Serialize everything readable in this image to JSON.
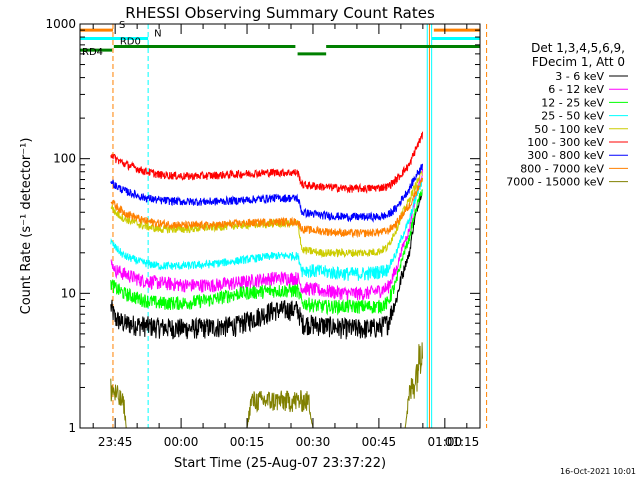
{
  "chart_data": {
    "type": "line",
    "title": "RHESSI Observing Summary Count Rates",
    "xlabel": "Start Time (25-Aug-07 23:37:22)",
    "ylabel": "Count Rate (s⁻¹ detector⁻¹)",
    "yscale": "log",
    "ylim": [
      1,
      1000
    ],
    "xlim_minutes": [
      -8,
      83
    ],
    "y_ticks": [
      {
        "v": 1,
        "label": "1"
      },
      {
        "v": 10,
        "label": "10"
      },
      {
        "v": 100,
        "label": "100"
      },
      {
        "v": 1000,
        "label": "1000"
      }
    ],
    "x_ticks": [
      {
        "t": 0,
        "label": "23:45"
      },
      {
        "t": 15,
        "label": "00:00"
      },
      {
        "t": 30,
        "label": "00:15"
      },
      {
        "t": 45,
        "label": "00:30"
      },
      {
        "t": 60,
        "label": "00:45"
      },
      {
        "t": 75,
        "label": "01:00"
      },
      {
        "t": 90,
        "label": "01:15"
      }
    ],
    "legend_header": [
      "Det 1,3,4,5,6,9,",
      "FDecim 1, Att 0"
    ],
    "series": [
      {
        "name": "3 - 6 keV",
        "color": "#000000",
        "x": [
          -1,
          0,
          2,
          6,
          10,
          16,
          22,
          28,
          36,
          41.5,
          42.5,
          47,
          53,
          57,
          60,
          62,
          64,
          67,
          70
        ],
        "y": [
          8,
          6.5,
          6,
          5.8,
          5.6,
          5.5,
          5.6,
          5.8,
          7.5,
          7.6,
          6,
          5.8,
          5.5,
          5.5,
          5.6,
          6,
          9,
          20,
          60
        ]
      },
      {
        "name": "6 - 12 keV",
        "color": "#ff00ff",
        "x": [
          -1,
          0,
          2,
          6,
          10,
          16,
          22,
          28,
          36,
          41.5,
          42.5,
          47,
          53,
          57,
          60,
          62,
          64,
          67,
          70
        ],
        "y": [
          17,
          15,
          14,
          12.5,
          12,
          11.5,
          11.5,
          12,
          13,
          13,
          11,
          10.5,
          10,
          10,
          10.5,
          11,
          15,
          30,
          80
        ]
      },
      {
        "name": "12 - 25 keV",
        "color": "#00ff00",
        "x": [
          -1,
          0,
          2,
          6,
          10,
          16,
          22,
          28,
          36,
          41.5,
          42.5,
          47,
          53,
          57,
          60,
          62,
          64,
          67,
          70
        ],
        "y": [
          12,
          11,
          10,
          9,
          8.5,
          8.5,
          9,
          10,
          10.5,
          10.5,
          8.5,
          8,
          8,
          8,
          8,
          8.5,
          12,
          26,
          60
        ]
      },
      {
        "name": "25 - 50 keV",
        "color": "#00ffff",
        "x": [
          -1,
          0,
          2,
          6,
          10,
          16,
          22,
          28,
          36,
          41.5,
          42.5,
          47,
          53,
          57,
          60,
          62,
          64,
          67,
          70
        ],
        "y": [
          24,
          22,
          19,
          17,
          16,
          16,
          16.5,
          17.5,
          19,
          19,
          15,
          14.5,
          14,
          14,
          14.5,
          15,
          20,
          35,
          70
        ]
      },
      {
        "name": "50 - 100 keV",
        "color": "#cccc00",
        "x": [
          -1,
          0,
          2,
          6,
          10,
          16,
          22,
          28,
          36,
          41.5,
          42.5,
          47,
          53,
          57,
          60,
          62,
          64,
          67,
          70
        ],
        "y": [
          45,
          40,
          36,
          32,
          30,
          30,
          31,
          32,
          33,
          33,
          21,
          20,
          20,
          20,
          20.5,
          22,
          30,
          50,
          80
        ]
      },
      {
        "name": "100 - 300 keV",
        "color": "#ff0000",
        "x": [
          -1,
          0,
          2,
          6,
          10,
          16,
          22,
          28,
          36,
          41.5,
          42.5,
          47,
          53,
          57,
          60,
          62,
          64,
          67,
          70
        ],
        "y": [
          110,
          100,
          92,
          82,
          76,
          74,
          75,
          77,
          79,
          79,
          64,
          62,
          60,
          60,
          61,
          62,
          70,
          90,
          150
        ]
      },
      {
        "name": "300 - 800 keV",
        "color": "#0000ff",
        "x": [
          -1,
          0,
          2,
          6,
          10,
          16,
          22,
          28,
          36,
          41.5,
          42.5,
          47,
          53,
          57,
          60,
          62,
          64,
          67,
          70
        ],
        "y": [
          70,
          63,
          58,
          52,
          49,
          48,
          48,
          49,
          51,
          51,
          40,
          38,
          37,
          37,
          37,
          38,
          43,
          60,
          90
        ]
      },
      {
        "name": "800 - 7000 keV",
        "color": "#ff8000",
        "x": [
          -1,
          0,
          2,
          6,
          10,
          16,
          22,
          28,
          36,
          41.5,
          42.5,
          47,
          53,
          57,
          60,
          62,
          64,
          67,
          70
        ],
        "y": [
          50,
          45,
          40,
          35,
          33,
          32,
          32,
          33,
          34,
          34,
          30,
          29,
          28,
          28,
          28.5,
          29,
          33,
          45,
          70
        ]
      },
      {
        "name": "7000 - 15000 keV",
        "color": "#808000",
        "x": [
          -1,
          0,
          2,
          2.5,
          30,
          31,
          35,
          40,
          44,
          45,
          66,
          67,
          68,
          69,
          70
        ],
        "y": [
          2,
          1.8,
          1.5,
          1,
          1,
          1.6,
          1.6,
          1.6,
          1.6,
          1,
          1,
          1.8,
          2.2,
          3,
          5
        ]
      }
    ],
    "vertical_lines": [
      {
        "t": -0.5,
        "color": "#ff8000",
        "dash": true
      },
      {
        "t": 7.5,
        "color": "#00ffff",
        "dash": true
      },
      {
        "t": 71,
        "color": "#00ffff",
        "dash": false
      },
      {
        "t": 72,
        "color": "#00ffff",
        "dash": false
      },
      {
        "t": 71.5,
        "color": "#ff8000",
        "dash": false
      },
      {
        "t": 84.5,
        "color": "#ff8000",
        "dash": true
      }
    ],
    "flag_bars": [
      {
        "label": "S",
        "color": "#ff8000",
        "y": 900,
        "segments": [
          [
            -8,
            -0.5
          ],
          [
            72.5,
            83
          ]
        ]
      },
      {
        "label": "N",
        "color": "#00ffff",
        "y": 780,
        "segments": [
          [
            -8,
            7.5
          ],
          [
            72,
            83
          ]
        ]
      },
      {
        "label": "RD0",
        "color": "#008000",
        "y": 680,
        "segments": [
          [
            -0.3,
            41
          ],
          [
            41.5,
            48
          ],
          [
            48,
            83
          ]
        ]
      },
      {
        "label": "RD4",
        "color": "#008000",
        "y": 640,
        "segments": [
          [
            -8,
            -0.7
          ]
        ]
      }
    ],
    "flag_bar_segment_y": [
      680,
      600,
      680
    ],
    "timestamp": "16-Oct-2021 10:01"
  }
}
